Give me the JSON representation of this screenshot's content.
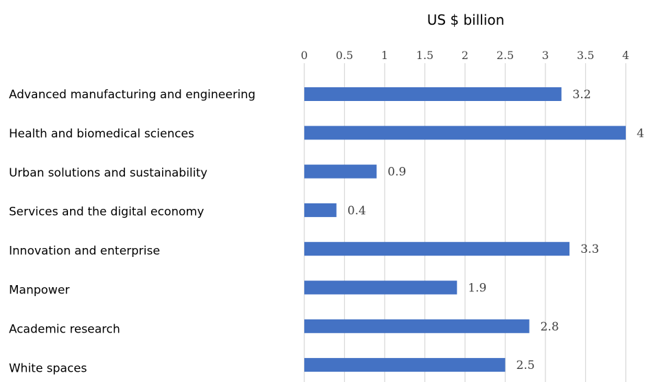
{
  "chart_data": {
    "type": "bar",
    "orientation": "horizontal",
    "title": "",
    "xlabel": "US $ billion",
    "ylabel": "",
    "categories": [
      "Advanced manufacturing and engineering",
      "Health and biomedical sciences",
      "Urban solutions and sustainability",
      "Services and the digital economy",
      "Innovation and enterprise",
      "Manpower",
      "Academic research",
      "White spaces"
    ],
    "values": [
      3.2,
      4,
      0.9,
      0.4,
      3.3,
      1.9,
      2.8,
      2.5
    ],
    "data_labels": [
      "3.2",
      "4",
      "0.9",
      "0.4",
      "3.3",
      "1.9",
      "2.8",
      "2.5"
    ],
    "xlim": [
      0,
      4
    ],
    "xticks": [
      0,
      0.5,
      1,
      1.5,
      2,
      2.5,
      3,
      3.5,
      4
    ],
    "xtick_labels": [
      "0",
      "0.5",
      "1",
      "1.5",
      "2",
      "2.5",
      "3",
      "3.5",
      "4"
    ],
    "axis_position": "top",
    "grid": true,
    "legend": false,
    "colors": {
      "bar": "#4472C4",
      "grid": "#d9d9d9"
    }
  }
}
